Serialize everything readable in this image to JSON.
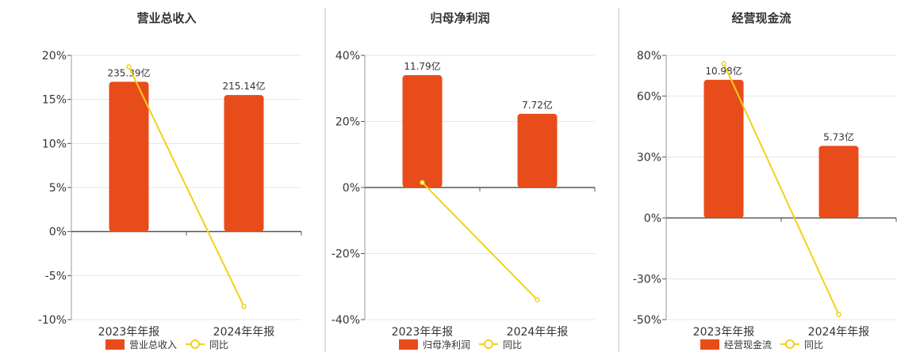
{
  "colors": {
    "bar": "#E84C1A",
    "line": "#F2D11A",
    "axis": "#555555",
    "grid": "#E6E6E6",
    "divider": "#BDBDBD",
    "label_text": "#333333",
    "tick_text": "#333333"
  },
  "chart_data": [
    {
      "type": "bar",
      "title": "营业总收入",
      "categories": [
        "2023年年报",
        "2024年年报"
      ],
      "series": [
        {
          "name": "营业总收入",
          "type": "bar",
          "labels": [
            "235.39亿",
            "215.14亿"
          ],
          "values": [
            17.0,
            15.5
          ]
        },
        {
          "name": "同比",
          "type": "line",
          "values": [
            18.7,
            -8.5
          ]
        }
      ],
      "yticks": [
        "20%",
        "15%",
        "10%",
        "5%",
        "0%",
        "-5%",
        "-10%"
      ],
      "ylim": [
        -10,
        20
      ],
      "grid": true,
      "legend_position": "bottom"
    },
    {
      "type": "bar",
      "title": "归母净利润",
      "categories": [
        "2023年年报",
        "2024年年报"
      ],
      "series": [
        {
          "name": "归母净利润",
          "type": "bar",
          "labels": [
            "11.79亿",
            "7.72亿"
          ],
          "values": [
            34.0,
            22.3
          ]
        },
        {
          "name": "同比",
          "type": "line",
          "values": [
            1.5,
            -34.0
          ]
        }
      ],
      "yticks": [
        "40%",
        "20%",
        "0%",
        "-20%",
        "-40%"
      ],
      "ylim": [
        -40,
        40
      ],
      "grid": true,
      "legend_position": "bottom"
    },
    {
      "type": "bar",
      "title": "经营现金流",
      "categories": [
        "2023年年报",
        "2024年年报"
      ],
      "series": [
        {
          "name": "经营现金流",
          "type": "bar",
          "labels": [
            "10.98亿",
            "5.73亿"
          ],
          "values": [
            68.0,
            35.5
          ]
        },
        {
          "name": "同比",
          "type": "line",
          "values": [
            76.0,
            -47.5
          ]
        }
      ],
      "yticks": [
        "80%",
        "60%",
        "30%",
        "0%",
        "-30%",
        "-50%"
      ],
      "ytick_values": [
        80,
        60,
        30,
        0,
        -30,
        -50
      ],
      "ylim": [
        -50,
        80
      ],
      "grid": true,
      "legend_position": "bottom"
    }
  ]
}
